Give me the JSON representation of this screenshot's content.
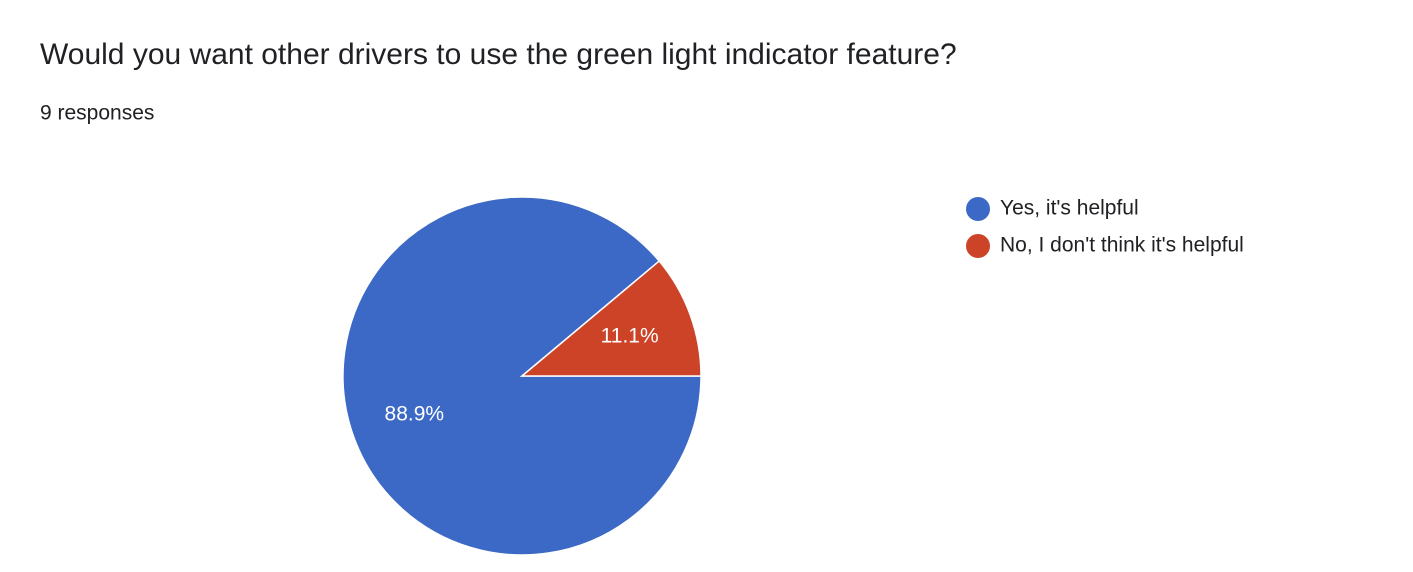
{
  "chart_data": {
    "type": "pie",
    "title": "Would you want other drivers to use the green light indicator feature?",
    "subtitle": "9 responses",
    "categories": [
      "Yes, it's helpful",
      "No, I don't think it's helpful"
    ],
    "values": [
      88.9,
      11.1
    ],
    "value_labels": [
      "88.9%",
      "11.1%"
    ],
    "colors": [
      "#3c69c5",
      "#cc4328"
    ],
    "legend": "right"
  }
}
